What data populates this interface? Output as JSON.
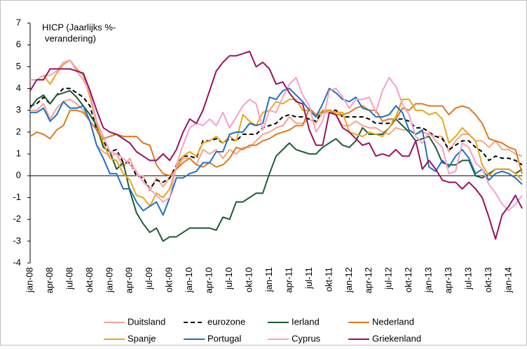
{
  "chart_data": {
    "type": "line",
    "annotation": [
      "HICP (Jaarlijks %-",
      "verandering)"
    ],
    "categories": [
      "jan-08",
      null,
      null,
      "apr-08",
      null,
      null,
      "jul-08",
      null,
      null,
      "okt-08",
      null,
      null,
      "jan-09",
      null,
      null,
      "apr-09",
      null,
      null,
      "jul-09",
      null,
      null,
      "okt-09",
      null,
      null,
      "jan-10",
      null,
      null,
      "apr-10",
      null,
      null,
      "jul-10",
      null,
      null,
      "okt-10",
      null,
      null,
      "jan-11",
      null,
      null,
      "apr-11",
      null,
      null,
      "jul-11",
      null,
      null,
      "okt-11",
      null,
      null,
      "jan-12",
      null,
      null,
      "apr-12",
      null,
      null,
      "jul-12",
      null,
      null,
      "okt-12",
      null,
      null,
      "jan-13",
      null,
      null,
      "apr-13",
      null,
      null,
      "jul-13",
      null,
      null,
      "okt-13",
      null,
      null,
      "jan-14",
      null,
      null
    ],
    "ylim": [
      -4,
      7
    ],
    "yticks": [
      -4,
      -3,
      -2,
      -1,
      0,
      1,
      2,
      3,
      4,
      5,
      6,
      7
    ],
    "grid": false,
    "legend": "bottom",
    "series": [
      {
        "name": "Duitsland",
        "color": "#f2a58a",
        "values": [
          3.0,
          3.0,
          3.3,
          2.6,
          3.1,
          3.4,
          3.5,
          3.3,
          3.0,
          2.5,
          1.4,
          1.1,
          0.9,
          1.0,
          0.4,
          0.8,
          0.0,
          0.0,
          -0.7,
          -0.1,
          -0.5,
          -0.1,
          0.3,
          0.8,
          0.8,
          0.5,
          1.2,
          1.0,
          1.2,
          0.8,
          1.2,
          1.0,
          1.3,
          1.3,
          1.6,
          1.9,
          2.0,
          2.2,
          2.3,
          2.7,
          2.4,
          2.4,
          2.6,
          2.4,
          2.9,
          2.9,
          2.8,
          2.3,
          2.3,
          2.5,
          2.3,
          2.2,
          2.2,
          2.0,
          1.9,
          2.2,
          2.1,
          2.1,
          1.9,
          2.0,
          1.9,
          1.8,
          1.8,
          1.1,
          1.6,
          1.9,
          1.9,
          1.6,
          1.6,
          1.3,
          1.6,
          1.2,
          1.2,
          1.0,
          0.9
        ]
      },
      {
        "name": "eurozone",
        "color": "#000000",
        "dashed": true,
        "values": [
          3.2,
          3.3,
          3.6,
          3.3,
          3.7,
          4.0,
          4.0,
          3.8,
          3.6,
          3.2,
          2.1,
          1.6,
          1.1,
          1.2,
          0.6,
          0.6,
          0.0,
          -0.1,
          -0.6,
          -0.2,
          -0.3,
          -0.1,
          0.5,
          0.9,
          0.9,
          0.8,
          1.6,
          1.6,
          1.7,
          1.5,
          1.7,
          1.6,
          1.9,
          1.9,
          1.9,
          2.2,
          2.3,
          2.4,
          2.7,
          2.8,
          2.7,
          2.7,
          2.6,
          2.5,
          3.0,
          3.0,
          3.0,
          2.7,
          2.7,
          2.7,
          2.7,
          2.6,
          2.4,
          2.4,
          2.4,
          2.6,
          2.6,
          2.5,
          2.2,
          2.2,
          2.0,
          1.8,
          1.7,
          1.2,
          1.4,
          1.6,
          1.6,
          1.3,
          1.1,
          0.7,
          0.9,
          0.8,
          0.8,
          0.7,
          0.5
        ]
      },
      {
        "name": "Ierland",
        "color": "#1f5a35",
        "values": [
          3.1,
          3.5,
          3.7,
          3.3,
          3.7,
          3.8,
          3.9,
          3.6,
          3.2,
          2.8,
          2.3,
          1.3,
          1.1,
          0.3,
          0.6,
          -0.7,
          -1.7,
          -2.2,
          -2.6,
          -2.4,
          -3.0,
          -2.8,
          -2.8,
          -2.6,
          -2.4,
          -2.4,
          -2.4,
          -2.4,
          -2.5,
          -1.9,
          -2.0,
          -1.2,
          -1.2,
          -1.0,
          -0.8,
          -0.8,
          0.1,
          0.9,
          1.2,
          1.5,
          1.2,
          1.1,
          1.0,
          1.0,
          1.3,
          1.5,
          1.7,
          1.4,
          1.3,
          1.6,
          2.2,
          1.9,
          1.9,
          1.9,
          2.2,
          2.6,
          2.3,
          2.0,
          1.6,
          1.7,
          1.8,
          1.3,
          0.6,
          0.5,
          0.5,
          0.7,
          0.7,
          0.0,
          -0.1,
          0.1,
          0.3,
          0.3,
          0.3,
          0.1,
          0.3
        ]
      },
      {
        "name": "Nederland",
        "color": "#e0781c",
        "values": [
          1.8,
          2.0,
          1.9,
          1.7,
          2.1,
          2.3,
          3.0,
          3.0,
          2.9,
          2.5,
          2.1,
          1.7,
          1.8,
          1.9,
          1.8,
          1.8,
          1.8,
          1.5,
          1.4,
          0.5,
          0.1,
          0.0,
          0.3,
          0.6,
          0.8,
          0.5,
          0.4,
          0.6,
          0.4,
          0.5,
          0.8,
          1.3,
          1.2,
          1.4,
          1.4,
          1.6,
          1.7,
          1.9,
          2.0,
          2.1,
          2.3,
          2.3,
          3.1,
          2.8,
          2.9,
          3.0,
          2.8,
          2.8,
          2.9,
          3.1,
          3.2,
          3.0,
          3.0,
          2.5,
          2.6,
          2.6,
          3.1,
          3.0,
          3.3,
          3.3,
          3.2,
          3.2,
          3.2,
          2.8,
          3.1,
          3.2,
          3.1,
          2.8,
          2.4,
          1.7,
          1.6,
          1.5,
          1.3,
          1.2,
          0.1
        ]
      },
      {
        "name": "Spanje",
        "color": "#e8a61a",
        "values": [
          4.4,
          4.4,
          4.6,
          4.2,
          4.7,
          5.1,
          5.3,
          4.9,
          4.6,
          3.6,
          2.4,
          1.5,
          0.8,
          0.7,
          0.1,
          -0.2,
          -0.9,
          -1.0,
          -1.4,
          -0.8,
          -1.0,
          -0.6,
          0.4,
          0.9,
          1.1,
          0.9,
          1.5,
          1.6,
          1.8,
          1.5,
          1.8,
          1.6,
          2.8,
          2.5,
          2.3,
          2.9,
          3.0,
          3.4,
          3.3,
          3.5,
          3.5,
          3.0,
          3.0,
          2.7,
          3.0,
          3.0,
          2.9,
          2.9,
          2.0,
          1.9,
          1.8,
          2.0,
          1.9,
          1.8,
          2.2,
          2.7,
          3.5,
          3.5,
          3.0,
          3.0,
          2.8,
          2.9,
          2.6,
          1.5,
          1.8,
          2.2,
          1.9,
          1.6,
          0.5,
          0.0,
          0.3,
          0.3,
          0.3,
          0.1,
          -0.2
        ]
      },
      {
        "name": "Portugal",
        "color": "#1f6fc5",
        "values": [
          2.9,
          2.9,
          3.1,
          2.5,
          2.8,
          3.4,
          3.1,
          3.1,
          3.2,
          2.5,
          1.4,
          0.8,
          0.1,
          0.1,
          -0.6,
          -0.6,
          -1.2,
          -1.6,
          -1.4,
          -1.2,
          -1.8,
          -1.0,
          -0.1,
          -0.1,
          0.1,
          0.2,
          0.6,
          0.6,
          1.1,
          1.1,
          1.9,
          2.0,
          2.0,
          2.4,
          2.3,
          2.4,
          3.6,
          3.5,
          3.9,
          4.0,
          3.7,
          3.4,
          3.0,
          2.7,
          3.3,
          4.0,
          3.8,
          3.5,
          3.4,
          3.6,
          3.1,
          3.0,
          2.7,
          2.7,
          2.8,
          3.2,
          2.9,
          2.1,
          1.9,
          2.1,
          0.4,
          0.2,
          0.7,
          0.4,
          0.9,
          1.2,
          0.8,
          0.1,
          0.3,
          -0.2,
          0.1,
          0.2,
          0.1,
          -0.1,
          -0.4
        ]
      },
      {
        "name": "Cyprus",
        "color": "#f5a0c8",
        "values": [
          4.4,
          4.4,
          4.6,
          4.6,
          4.8,
          5.2,
          5.3,
          4.8,
          4.4,
          3.8,
          2.5,
          1.8,
          1.1,
          1.0,
          0.8,
          0.5,
          0.2,
          -0.3,
          -0.6,
          -0.9,
          -1.2,
          -1.0,
          0.5,
          1.4,
          2.2,
          2.4,
          2.3,
          2.6,
          2.3,
          2.9,
          2.2,
          2.7,
          3.2,
          3.5,
          3.3,
          2.1,
          3.0,
          2.9,
          3.6,
          4.2,
          4.5,
          3.7,
          3.2,
          2.0,
          2.5,
          3.9,
          4.0,
          3.6,
          3.1,
          3.5,
          3.5,
          3.6,
          2.9,
          3.9,
          4.5,
          4.1,
          3.3,
          2.8,
          1.8,
          1.5,
          2.0,
          1.6,
          1.3,
          0.1,
          0.2,
          1.5,
          1.3,
          0.6,
          0.3,
          -0.4,
          -0.8,
          -1.3,
          -1.6,
          -1.3,
          -0.9
        ]
      },
      {
        "name": "Griekenland",
        "color": "#9a1060",
        "values": [
          3.9,
          4.4,
          4.4,
          4.9,
          4.9,
          4.9,
          4.9,
          4.8,
          4.7,
          3.9,
          3.0,
          2.2,
          2.0,
          1.9,
          1.7,
          1.5,
          1.1,
          0.9,
          0.7,
          0.7,
          1.0,
          0.7,
          1.2,
          2.0,
          2.6,
          2.4,
          3.0,
          3.9,
          4.8,
          5.2,
          5.5,
          5.5,
          5.6,
          5.7,
          5.0,
          5.2,
          4.9,
          4.2,
          4.3,
          3.8,
          3.4,
          3.3,
          2.1,
          1.4,
          1.4,
          2.9,
          2.8,
          2.2,
          2.0,
          1.7,
          1.4,
          1.5,
          0.9,
          1.0,
          0.9,
          1.2,
          0.9,
          0.9,
          1.6,
          0.3,
          0.7,
          0.3,
          -0.2,
          -0.3,
          -0.3,
          -0.6,
          -0.3,
          -0.6,
          -1.0,
          -1.9,
          -2.9,
          -1.8,
          -1.4,
          -0.9,
          -1.5
        ]
      }
    ]
  }
}
